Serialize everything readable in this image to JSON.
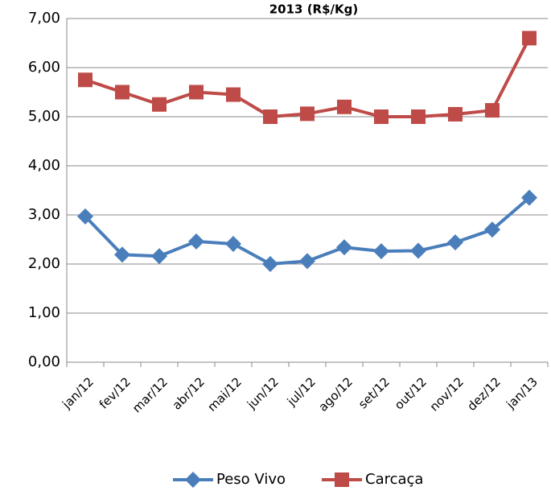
{
  "chart_data": {
    "type": "line",
    "title": "2013 (R$/Kg)",
    "categories": [
      "jan/12",
      "fev/12",
      "mar/12",
      "abr/12",
      "mai/12",
      "jun/12",
      "jul/12",
      "ago/12",
      "set/12",
      "out/12",
      "nov/12",
      "dez/12",
      "jan/13"
    ],
    "series": [
      {
        "name": "Peso Vivo",
        "color": "#4a7ebb",
        "marker": "diamond",
        "values": [
          2.97,
          2.19,
          2.16,
          2.46,
          2.41,
          2.0,
          2.06,
          2.34,
          2.26,
          2.27,
          2.44,
          2.7,
          3.35
        ]
      },
      {
        "name": "Carcaça",
        "color": "#be4b48",
        "marker": "square",
        "values": [
          5.75,
          5.5,
          5.25,
          5.5,
          5.45,
          5.0,
          5.06,
          5.2,
          5.0,
          5.0,
          5.05,
          5.13,
          6.6
        ]
      }
    ],
    "ylim": [
      0,
      7
    ],
    "yticks": [
      {
        "value": 0,
        "label": "0,00"
      },
      {
        "value": 1,
        "label": "1,00"
      },
      {
        "value": 2,
        "label": "2,00"
      },
      {
        "value": 3,
        "label": "3,00"
      },
      {
        "value": 4,
        "label": "4,00"
      },
      {
        "value": 5,
        "label": "5,00"
      },
      {
        "value": 6,
        "label": "6,00"
      },
      {
        "value": 7,
        "label": "7,00"
      }
    ],
    "grid": true,
    "legend": "bottom"
  }
}
